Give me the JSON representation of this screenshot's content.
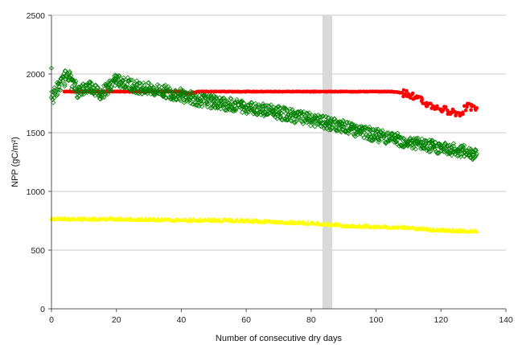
{
  "chart_data": {
    "type": "scatter",
    "title": "",
    "xlabel": "Number of consecutive dry days",
    "ylabel": "NPP (gC/m²)",
    "xlim": [
      0,
      140
    ],
    "ylim": [
      0,
      2500
    ],
    "xticks": [
      0,
      20,
      40,
      60,
      80,
      100,
      120,
      140
    ],
    "yticks": [
      0,
      500,
      1000,
      1500,
      2000,
      2500
    ],
    "grid": "horizontal",
    "legend": "none",
    "highlight_band": {
      "x_from": 83.5,
      "x_to": 86.5,
      "color": "#d9d9d9"
    },
    "series": [
      {
        "marker": "circle",
        "color": "#ff0000",
        "filled": true,
        "points": [
          [
            4,
            1850
          ],
          [
            10,
            1850
          ],
          [
            20,
            1850
          ],
          [
            30,
            1850
          ],
          [
            35,
            1850
          ],
          [
            40,
            1850
          ],
          [
            42,
            1830
          ],
          [
            45,
            1850
          ],
          [
            50,
            1850
          ],
          [
            60,
            1850
          ],
          [
            70,
            1850
          ],
          [
            80,
            1850
          ],
          [
            90,
            1850
          ],
          [
            100,
            1850
          ],
          [
            105,
            1850
          ],
          [
            108,
            1840
          ],
          [
            110,
            1830
          ],
          [
            112,
            1800
          ],
          [
            114,
            1770
          ],
          [
            116,
            1740
          ],
          [
            118,
            1720
          ],
          [
            120,
            1700
          ],
          [
            122,
            1690
          ],
          [
            124,
            1680
          ],
          [
            126,
            1660
          ],
          [
            128,
            1720
          ],
          [
            131,
            1710
          ]
        ]
      },
      {
        "marker": "diamond",
        "color": "#008000",
        "filled": false,
        "points": [
          [
            0,
            2050
          ],
          [
            0,
            1800
          ],
          [
            5,
            2000
          ],
          [
            8,
            1850
          ],
          [
            12,
            1900
          ],
          [
            15,
            1830
          ],
          [
            20,
            1950
          ],
          [
            25,
            1900
          ],
          [
            30,
            1870
          ],
          [
            35,
            1850
          ],
          [
            40,
            1820
          ],
          [
            45,
            1780
          ],
          [
            50,
            1760
          ],
          [
            55,
            1740
          ],
          [
            60,
            1720
          ],
          [
            65,
            1700
          ],
          [
            70,
            1670
          ],
          [
            75,
            1640
          ],
          [
            80,
            1610
          ],
          [
            85,
            1580
          ],
          [
            90,
            1550
          ],
          [
            95,
            1510
          ],
          [
            100,
            1480
          ],
          [
            105,
            1450
          ],
          [
            110,
            1420
          ],
          [
            115,
            1390
          ],
          [
            120,
            1370
          ],
          [
            125,
            1350
          ],
          [
            131,
            1320
          ]
        ]
      },
      {
        "marker": "triangle",
        "color": "#ffff00",
        "filled": true,
        "points": [
          [
            0,
            770
          ],
          [
            5,
            765
          ],
          [
            10,
            765
          ],
          [
            15,
            765
          ],
          [
            20,
            765
          ],
          [
            30,
            760
          ],
          [
            40,
            755
          ],
          [
            50,
            755
          ],
          [
            60,
            750
          ],
          [
            70,
            740
          ],
          [
            80,
            730
          ],
          [
            85,
            720
          ],
          [
            90,
            710
          ],
          [
            100,
            700
          ],
          [
            110,
            690
          ],
          [
            120,
            670
          ],
          [
            125,
            665
          ],
          [
            131,
            660
          ]
        ]
      }
    ]
  }
}
